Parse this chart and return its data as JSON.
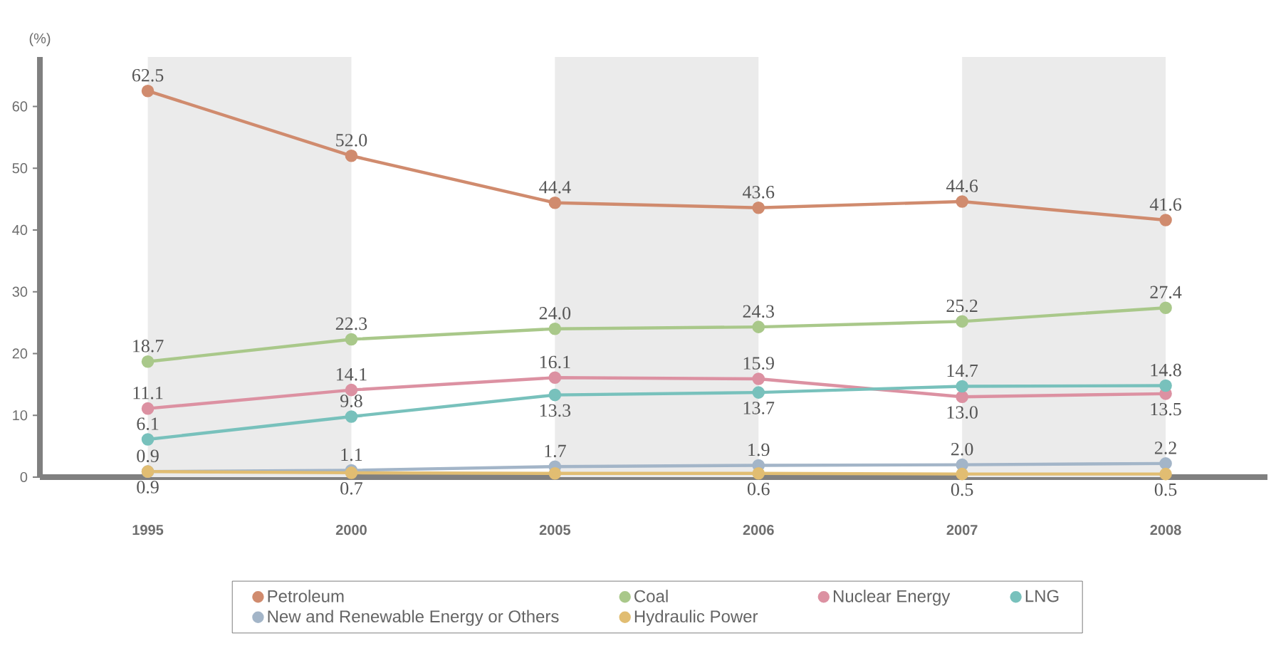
{
  "chart_data": {
    "type": "line",
    "ylabel": "(%)",
    "categories": [
      "1995",
      "2000",
      "2005",
      "2006",
      "2007",
      "2008"
    ],
    "ylim": [
      0,
      68
    ],
    "yticks": [
      0,
      10,
      20,
      30,
      40,
      50,
      60
    ],
    "marker": "circle",
    "legend": "bottom",
    "grid": false,
    "bands": [
      {
        "axis": "x",
        "from": "1995",
        "to": "2000",
        "color": "#ebebeb"
      },
      {
        "axis": "x",
        "from": "2005",
        "to": "2006",
        "color": "#ebebeb"
      },
      {
        "axis": "x",
        "from": "2007",
        "to": "2008",
        "color": "#ebebeb"
      }
    ],
    "series": [
      {
        "name": "Petroleum",
        "color": "#d08b6e",
        "values": [
          62.5,
          52.0,
          44.4,
          43.6,
          44.6,
          41.6
        ],
        "value_labels": [
          "62.5",
          "52.0",
          "44.4",
          "43.6",
          "44.6",
          "41.6"
        ]
      },
      {
        "name": "Coal",
        "color": "#a9c88a",
        "values": [
          18.7,
          22.3,
          24.0,
          24.3,
          25.2,
          27.4
        ],
        "value_labels": [
          "18.7",
          "22.3",
          "24.0",
          "24.3",
          "25.2",
          "27.4"
        ]
      },
      {
        "name": "Nuclear Energy",
        "color": "#dc91a2",
        "values": [
          11.1,
          14.1,
          16.1,
          15.9,
          13.0,
          13.5
        ],
        "value_labels": [
          "11.1",
          "14.1",
          "16.1",
          "15.9",
          "13.0",
          "13.5"
        ]
      },
      {
        "name": "LNG",
        "color": "#78c1bc",
        "values": [
          6.1,
          9.8,
          13.3,
          13.7,
          14.7,
          14.8
        ],
        "value_labels": [
          "6.1",
          "9.8",
          "13.3",
          "13.7",
          "14.7",
          "14.8"
        ]
      },
      {
        "name": "New and Renewable Energy or Others",
        "color": "#a3b5c8",
        "values": [
          0.9,
          1.1,
          1.7,
          1.9,
          2.0,
          2.2
        ],
        "value_labels": [
          "0.9",
          "1.1",
          "1.7",
          "1.9",
          "2.0",
          "2.2"
        ]
      },
      {
        "name": "Hydraulic Power",
        "color": "#e1bd72",
        "values": [
          0.9,
          0.7,
          0.6,
          0.6,
          0.5,
          0.5
        ],
        "value_labels": [
          "0.9",
          "0.7",
          null,
          "0.6",
          "0.5",
          "0.5"
        ]
      }
    ]
  }
}
